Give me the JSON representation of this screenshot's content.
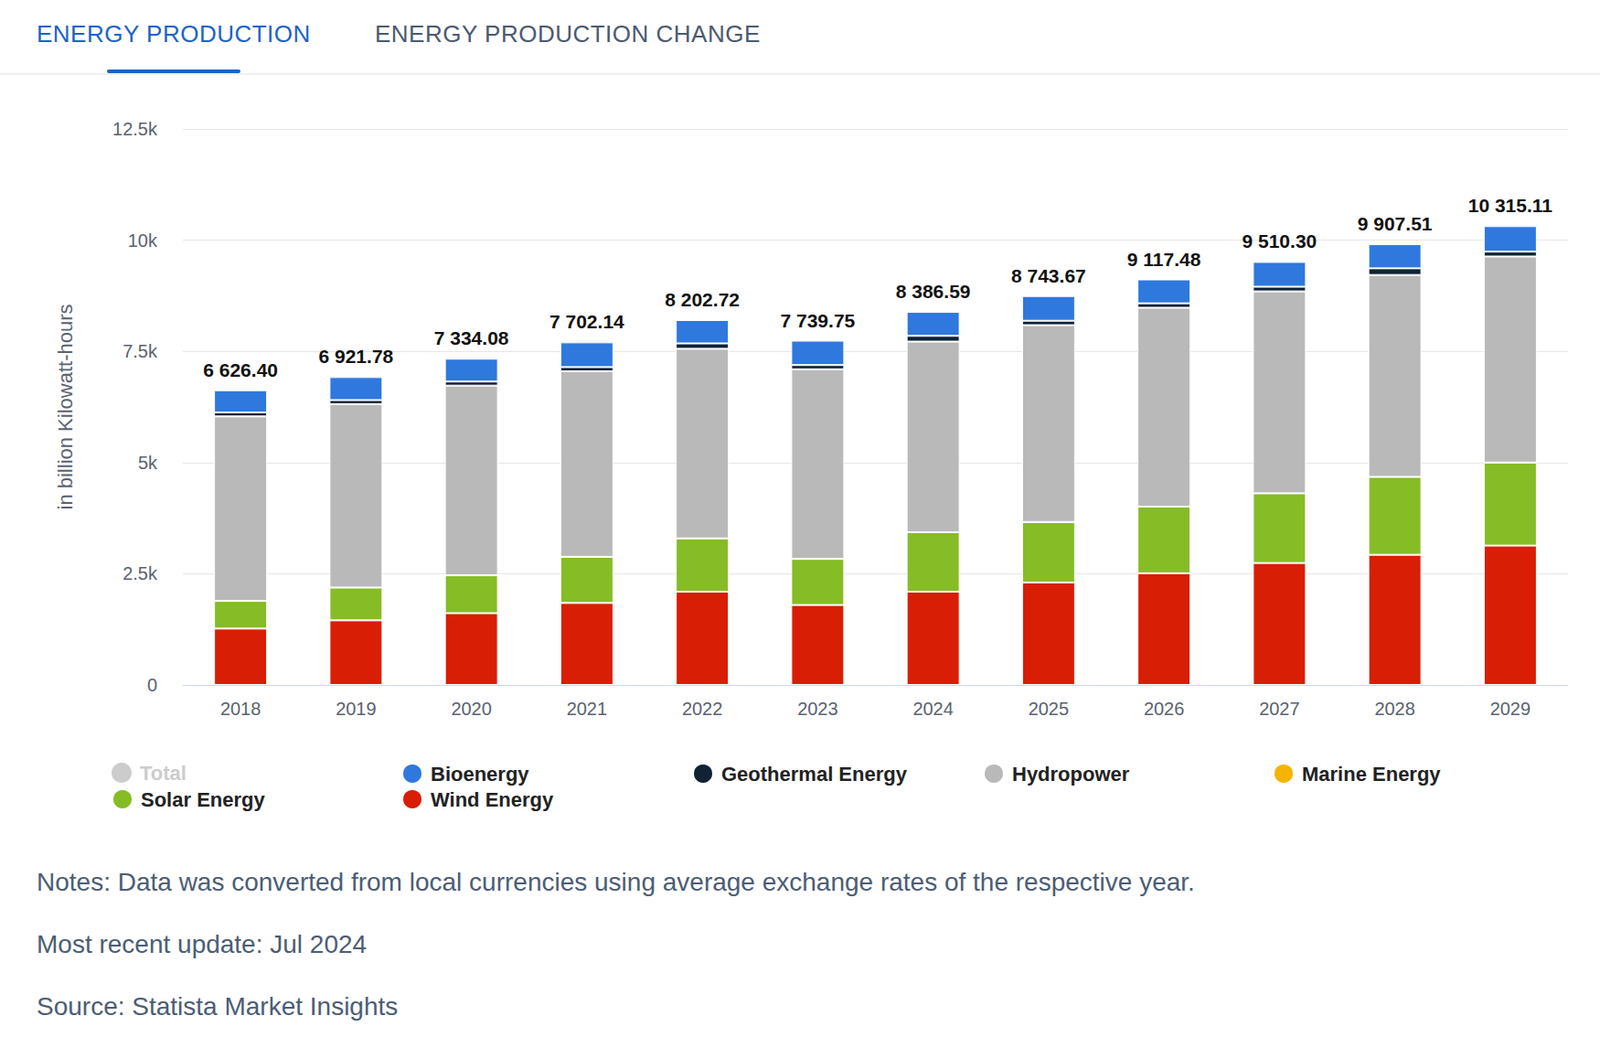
{
  "tabs": [
    {
      "label": "ENERGY PRODUCTION",
      "active": true
    },
    {
      "label": "ENERGY PRODUCTION CHANGE",
      "active": false
    }
  ],
  "chart_data": {
    "type": "bar",
    "stacked": true,
    "grid": true,
    "ylabel": "in billion Kilowatt-hours",
    "categories": [
      "2018",
      "2019",
      "2020",
      "2021",
      "2022",
      "2023",
      "2024",
      "2025",
      "2026",
      "2027",
      "2028",
      "2029"
    ],
    "ylim": [
      0,
      12500
    ],
    "yticks": [
      0,
      {
        "value": 2500,
        "label": "2.5k"
      },
      {
        "value": 5000,
        "label": "5k"
      },
      {
        "value": 7500,
        "label": "7.5k"
      },
      {
        "value": 10000,
        "label": "10k"
      },
      {
        "value": 12500,
        "label": "12.5k"
      }
    ],
    "series": [
      {
        "name": "Total",
        "color": "#cccccc",
        "type": "line",
        "stacked": false,
        "data_labels": true,
        "marker": "none",
        "line_style": "none",
        "values": [
          6626.4,
          6921.78,
          7334.08,
          7702.14,
          8202.72,
          7739.75,
          8386.59,
          8743.67,
          9117.48,
          9510.3,
          9907.51,
          10315.11
        ],
        "value_labels": [
          "6 626.40",
          "6 921.78",
          "7 334.08",
          "7 702.14",
          "8 202.72",
          "7 739.75",
          "8 386.59",
          "8 743.67",
          "9 117.48",
          "9 510.30",
          "9 907.51",
          "10 315.11"
        ]
      },
      {
        "name": "Bioenergy",
        "color": "#2f78de",
        "values": [
          500,
          518,
          513,
          556,
          525,
          548,
          538,
          556,
          537,
          557,
          541,
          573
        ]
      },
      {
        "name": "Geothermal Energy",
        "color": "#0f2236",
        "values": [
          89,
          90,
          92,
          95,
          120,
          95,
          130,
          100,
          100,
          105,
          150,
          110
        ]
      },
      {
        "name": "Hydropower",
        "color": "#b9b9b9",
        "values": [
          4147,
          4124,
          4263,
          4170,
          4262,
          4262,
          4285,
          4424,
          4470,
          4539,
          4539,
          4631
        ]
      },
      {
        "name": "Marine Energy",
        "color": "#f5b400",
        "values": [
          1,
          1,
          1,
          1,
          1,
          1,
          1,
          1,
          1,
          1,
          1,
          1
        ]
      },
      {
        "name": "Solar Energy",
        "color": "#86bc25",
        "values": [
          622,
          737,
          852,
          1037,
          1198,
          1037,
          1336,
          1359,
          1498,
          1566,
          1751,
          1867
        ]
      },
      {
        "name": "Wind Energy",
        "color": "#d81e05",
        "values": [
          1267,
          1452,
          1613,
          1843,
          2097,
          1797,
          2097,
          2304,
          2511,
          2742,
          2926,
          3133
        ]
      }
    ]
  },
  "notes": [
    "Notes: Data was converted from local currencies using average exchange rates of the respective year.",
    "Most recent update: Jul 2024",
    "Source: Statista Market Insights"
  ]
}
